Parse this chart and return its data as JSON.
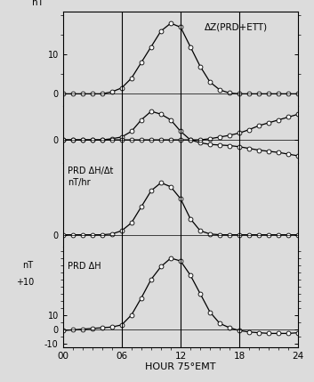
{
  "hours": [
    0,
    1,
    2,
    3,
    4,
    5,
    6,
    7,
    8,
    9,
    10,
    11,
    12,
    13,
    14,
    15,
    16,
    17,
    18,
    19,
    20,
    21,
    22,
    23,
    24
  ],
  "dZ_big": [
    0,
    0,
    0,
    0,
    0,
    0.5,
    1.5,
    4,
    8,
    12,
    16,
    18,
    17,
    12,
    7,
    3,
    1,
    0.2,
    0,
    0,
    0,
    0,
    0,
    0,
    0
  ],
  "dZ_small": [
    0,
    0,
    0,
    0,
    0,
    0.2,
    0.5,
    1.5,
    3.5,
    5,
    4.5,
    3.5,
    1.5,
    0,
    -0.5,
    -0.8,
    -0.9,
    -1.0,
    -1.2,
    -1.5,
    -1.8,
    -2.0,
    -2.2,
    -2.5,
    -2.8
  ],
  "dZ_flat": [
    0,
    0,
    0,
    0,
    0,
    0,
    0,
    0,
    0,
    0,
    0,
    0,
    0,
    0,
    0,
    0.2,
    0.5,
    0.8,
    1.2,
    1.8,
    2.5,
    3.0,
    3.5,
    4.0,
    4.5
  ],
  "dHdt": [
    0,
    0,
    0,
    0,
    0,
    0.1,
    0.5,
    1.5,
    3.5,
    5.5,
    6.5,
    6.0,
    4.5,
    2.0,
    0.5,
    0.1,
    0,
    0,
    0,
    0,
    0,
    0,
    0,
    0,
    0
  ],
  "dH": [
    -1,
    -0.5,
    0,
    0.5,
    1.0,
    1.5,
    3,
    10,
    22,
    35,
    44,
    50,
    48,
    38,
    25,
    12,
    4,
    1,
    -1,
    -2,
    -2.5,
    -3,
    -3,
    -3,
    -2.5
  ],
  "vlines": [
    6,
    12,
    18
  ],
  "bg_color": "#dcdcdc",
  "marker": "o",
  "markersize": 3.5,
  "xlabel": "HOUR 75°EMT",
  "label_dZ": "ΔZ(PRD+ETT)",
  "label_dHdt": "PRD ΔH/Δt\nnT/hr",
  "label_dH": "PRD ΔH",
  "xticklabels": [
    "00",
    "06",
    "12",
    "18",
    "24"
  ]
}
